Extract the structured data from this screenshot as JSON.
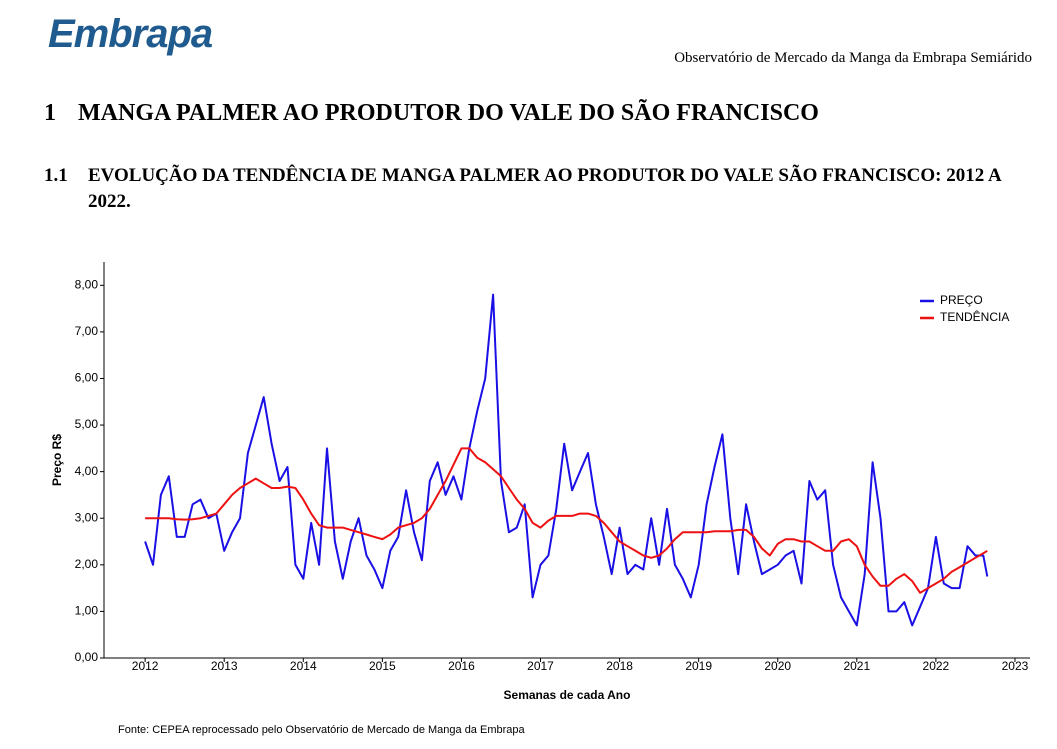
{
  "header": {
    "logo": "Embrapa",
    "title": "Observatório de Mercado da Manga da Embrapa Semiárido"
  },
  "section": {
    "number": "1",
    "title": "MANGA PALMER AO PRODUTOR DO VALE DO SÃO FRANCISCO"
  },
  "subsection": {
    "number": "1.1",
    "title": "EVOLUÇÃO DA TENDÊNCIA DE MANGA PALMER AO PRODUTOR DO VALE SÃO FRANCISCO: 2012 A 2022."
  },
  "chart_data": {
    "type": "line",
    "x_label": "Semanas de cada Ano",
    "y_label": "Preço R$",
    "x": [
      2012.0,
      2012.1,
      2012.2,
      2012.3,
      2012.4,
      2012.5,
      2012.6,
      2012.7,
      2012.8,
      2012.9,
      2013.0,
      2013.1,
      2013.2,
      2013.3,
      2013.4,
      2013.5,
      2013.6,
      2013.7,
      2013.8,
      2013.9,
      2014.0,
      2014.1,
      2014.2,
      2014.3,
      2014.4,
      2014.5,
      2014.6,
      2014.7,
      2014.8,
      2014.9,
      2015.0,
      2015.1,
      2015.2,
      2015.3,
      2015.4,
      2015.5,
      2015.6,
      2015.7,
      2015.8,
      2015.9,
      2016.0,
      2016.1,
      2016.2,
      2016.3,
      2016.4,
      2016.5,
      2016.6,
      2016.7,
      2016.8,
      2016.9,
      2017.0,
      2017.1,
      2017.2,
      2017.3,
      2017.4,
      2017.5,
      2017.6,
      2017.7,
      2017.8,
      2017.9,
      2018.0,
      2018.1,
      2018.2,
      2018.3,
      2018.4,
      2018.5,
      2018.6,
      2018.7,
      2018.8,
      2018.9,
      2019.0,
      2019.1,
      2019.2,
      2019.3,
      2019.4,
      2019.5,
      2019.6,
      2019.7,
      2019.8,
      2019.9,
      2020.0,
      2020.1,
      2020.2,
      2020.3,
      2020.4,
      2020.5,
      2020.6,
      2020.7,
      2020.8,
      2020.9,
      2021.0,
      2021.1,
      2021.2,
      2021.3,
      2021.4,
      2021.5,
      2021.6,
      2021.7,
      2021.8,
      2021.9,
      2022.0,
      2022.1,
      2022.2,
      2022.3,
      2022.4,
      2022.5,
      2022.6,
      2022.65
    ],
    "series": [
      {
        "name": "PREÇO",
        "color": "#1a10e6",
        "values": [
          2.5,
          2.0,
          3.5,
          3.9,
          2.6,
          2.6,
          3.3,
          3.4,
          3.0,
          3.1,
          2.3,
          2.7,
          3.0,
          4.4,
          5.0,
          5.6,
          4.6,
          3.8,
          4.1,
          2.0,
          1.7,
          2.9,
          2.0,
          4.5,
          2.5,
          1.7,
          2.5,
          3.0,
          2.2,
          1.9,
          1.5,
          2.3,
          2.6,
          3.6,
          2.7,
          2.1,
          3.8,
          4.2,
          3.5,
          3.9,
          3.4,
          4.5,
          5.3,
          6.0,
          7.8,
          3.8,
          2.7,
          2.8,
          3.3,
          1.3,
          2.0,
          2.2,
          3.2,
          4.6,
          3.6,
          4.0,
          4.4,
          3.3,
          2.6,
          1.8,
          2.8,
          1.8,
          2.0,
          1.9,
          3.0,
          2.0,
          3.2,
          2.0,
          1.7,
          1.3,
          2.0,
          3.3,
          4.1,
          4.8,
          3.0,
          1.8,
          3.3,
          2.5,
          1.8,
          1.9,
          2.0,
          2.2,
          2.3,
          1.6,
          3.8,
          3.4,
          3.6,
          2.0,
          1.3,
          1.0,
          0.7,
          1.8,
          4.2,
          3.0,
          1.0,
          1.0,
          1.2,
          0.7,
          1.1,
          1.5,
          2.6,
          1.6,
          1.5,
          1.5,
          2.4,
          2.2,
          2.2,
          1.75
        ]
      },
      {
        "name": "TENDÊNCIA",
        "color": "#ee1111",
        "values": [
          3.0,
          3.0,
          3.0,
          3.0,
          2.98,
          2.97,
          2.98,
          3.0,
          3.05,
          3.1,
          3.3,
          3.5,
          3.65,
          3.75,
          3.85,
          3.75,
          3.65,
          3.65,
          3.68,
          3.65,
          3.4,
          3.1,
          2.85,
          2.8,
          2.8,
          2.8,
          2.75,
          2.7,
          2.65,
          2.6,
          2.55,
          2.65,
          2.8,
          2.85,
          2.9,
          3.0,
          3.2,
          3.5,
          3.8,
          4.15,
          4.5,
          4.5,
          4.3,
          4.2,
          4.05,
          3.9,
          3.65,
          3.4,
          3.2,
          2.9,
          2.8,
          2.95,
          3.05,
          3.05,
          3.05,
          3.1,
          3.1,
          3.05,
          2.9,
          2.7,
          2.5,
          2.4,
          2.3,
          2.2,
          2.15,
          2.2,
          2.35,
          2.55,
          2.7,
          2.7,
          2.7,
          2.7,
          2.72,
          2.72,
          2.72,
          2.75,
          2.75,
          2.6,
          2.35,
          2.2,
          2.45,
          2.55,
          2.55,
          2.5,
          2.5,
          2.4,
          2.3,
          2.3,
          2.5,
          2.55,
          2.4,
          2.0,
          1.75,
          1.55,
          1.55,
          1.7,
          1.8,
          1.65,
          1.4,
          1.5,
          1.6,
          1.7,
          1.85,
          1.95,
          2.05,
          2.15,
          2.25,
          2.3
        ]
      }
    ],
    "xlim": [
      2011.48,
      2023.19
    ],
    "xticks": [
      2012,
      2013,
      2014,
      2015,
      2016,
      2017,
      2018,
      2019,
      2020,
      2021,
      2022,
      2023
    ],
    "ylim": [
      0,
      8.5
    ],
    "yticks": [
      {
        "value": 0,
        "label": "0,00"
      },
      {
        "value": 1,
        "label": "1,00"
      },
      {
        "value": 2,
        "label": "2,00"
      },
      {
        "value": 3,
        "label": "3,00"
      },
      {
        "value": 4,
        "label": "4,00"
      },
      {
        "value": 5,
        "label": "5,00"
      },
      {
        "value": 6,
        "label": "6,00"
      },
      {
        "value": 7,
        "label": "7,00"
      },
      {
        "value": 8,
        "label": "8,00"
      }
    ],
    "legend": "top-right",
    "grid": false
  },
  "source": "Fonte: CEPEA reprocessado pelo Observatório de Mercado de Manga da Embrapa"
}
